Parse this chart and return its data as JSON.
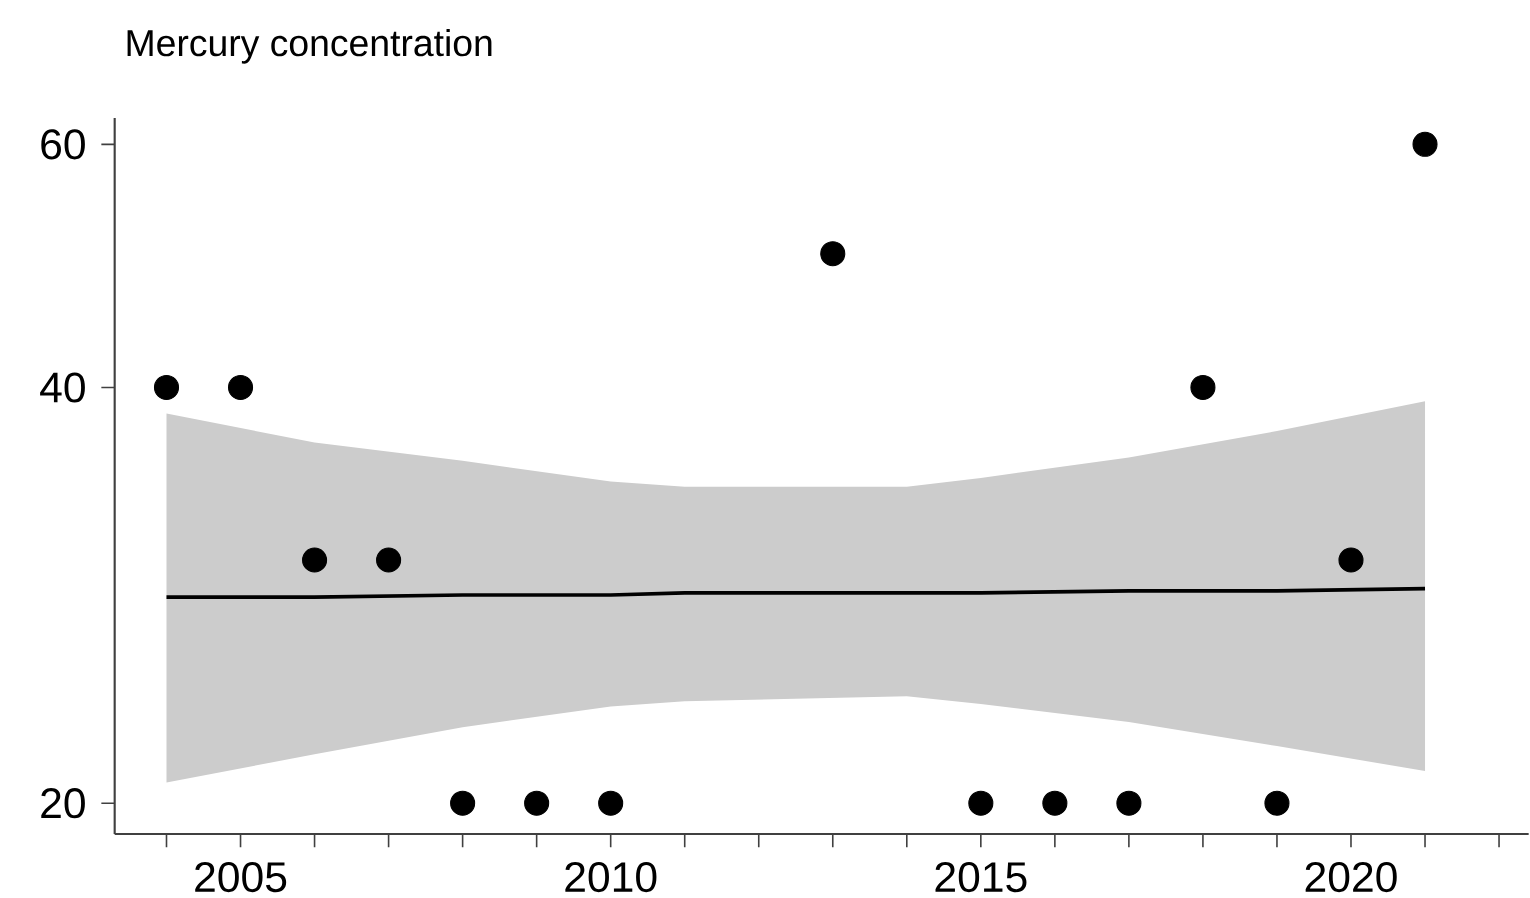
{
  "chart_data": {
    "type": "scatter",
    "title": "Mercury concentration",
    "log": "y",
    "xlim": [
      2003.3,
      2022.4
    ],
    "ylim": [
      19.0,
      62.7
    ],
    "xticks": [
      {
        "value": 2004,
        "label": null
      },
      {
        "value": 2005,
        "label": "2005"
      },
      {
        "value": 2006,
        "label": null
      },
      {
        "value": 2007,
        "label": null
      },
      {
        "value": 2008,
        "label": null
      },
      {
        "value": 2009,
        "label": null
      },
      {
        "value": 2010,
        "label": "2010"
      },
      {
        "value": 2011,
        "label": null
      },
      {
        "value": 2012,
        "label": null
      },
      {
        "value": 2013,
        "label": null
      },
      {
        "value": 2014,
        "label": null
      },
      {
        "value": 2015,
        "label": "2015"
      },
      {
        "value": 2016,
        "label": null
      },
      {
        "value": 2017,
        "label": null
      },
      {
        "value": 2018,
        "label": null
      },
      {
        "value": 2019,
        "label": null
      },
      {
        "value": 2020,
        "label": "2020"
      },
      {
        "value": 2021,
        "label": null
      },
      {
        "value": 2022,
        "label": null
      }
    ],
    "yticks": [
      20,
      40,
      60
    ],
    "series": [
      {
        "type": "line",
        "color": "#000000",
        "line_style": "solid",
        "x": [
          2004,
          2006,
          2008,
          2010,
          2011,
          2014,
          2015,
          2017,
          2019,
          2021
        ],
        "values": [
          28.2,
          28.2,
          28.3,
          28.3,
          28.4,
          28.4,
          28.4,
          28.5,
          28.5,
          28.6
        ],
        "lower": [
          20.7,
          21.7,
          22.7,
          23.5,
          23.7,
          23.9,
          23.6,
          22.9,
          22.0,
          21.1
        ],
        "upper": [
          38.3,
          36.5,
          35.4,
          34.2,
          33.9,
          33.9,
          34.4,
          35.6,
          37.2,
          39.1
        ]
      },
      {
        "color": "#000000",
        "marker": "circle",
        "x": [
          2004,
          2005,
          2006,
          2007,
          2008,
          2009,
          2010,
          2013,
          2015,
          2016,
          2017,
          2018,
          2019,
          2020,
          2021
        ],
        "values": [
          40,
          40,
          30,
          30,
          20,
          20,
          20,
          50,
          20,
          20,
          20,
          40,
          20,
          30,
          60
        ]
      }
    ]
  }
}
